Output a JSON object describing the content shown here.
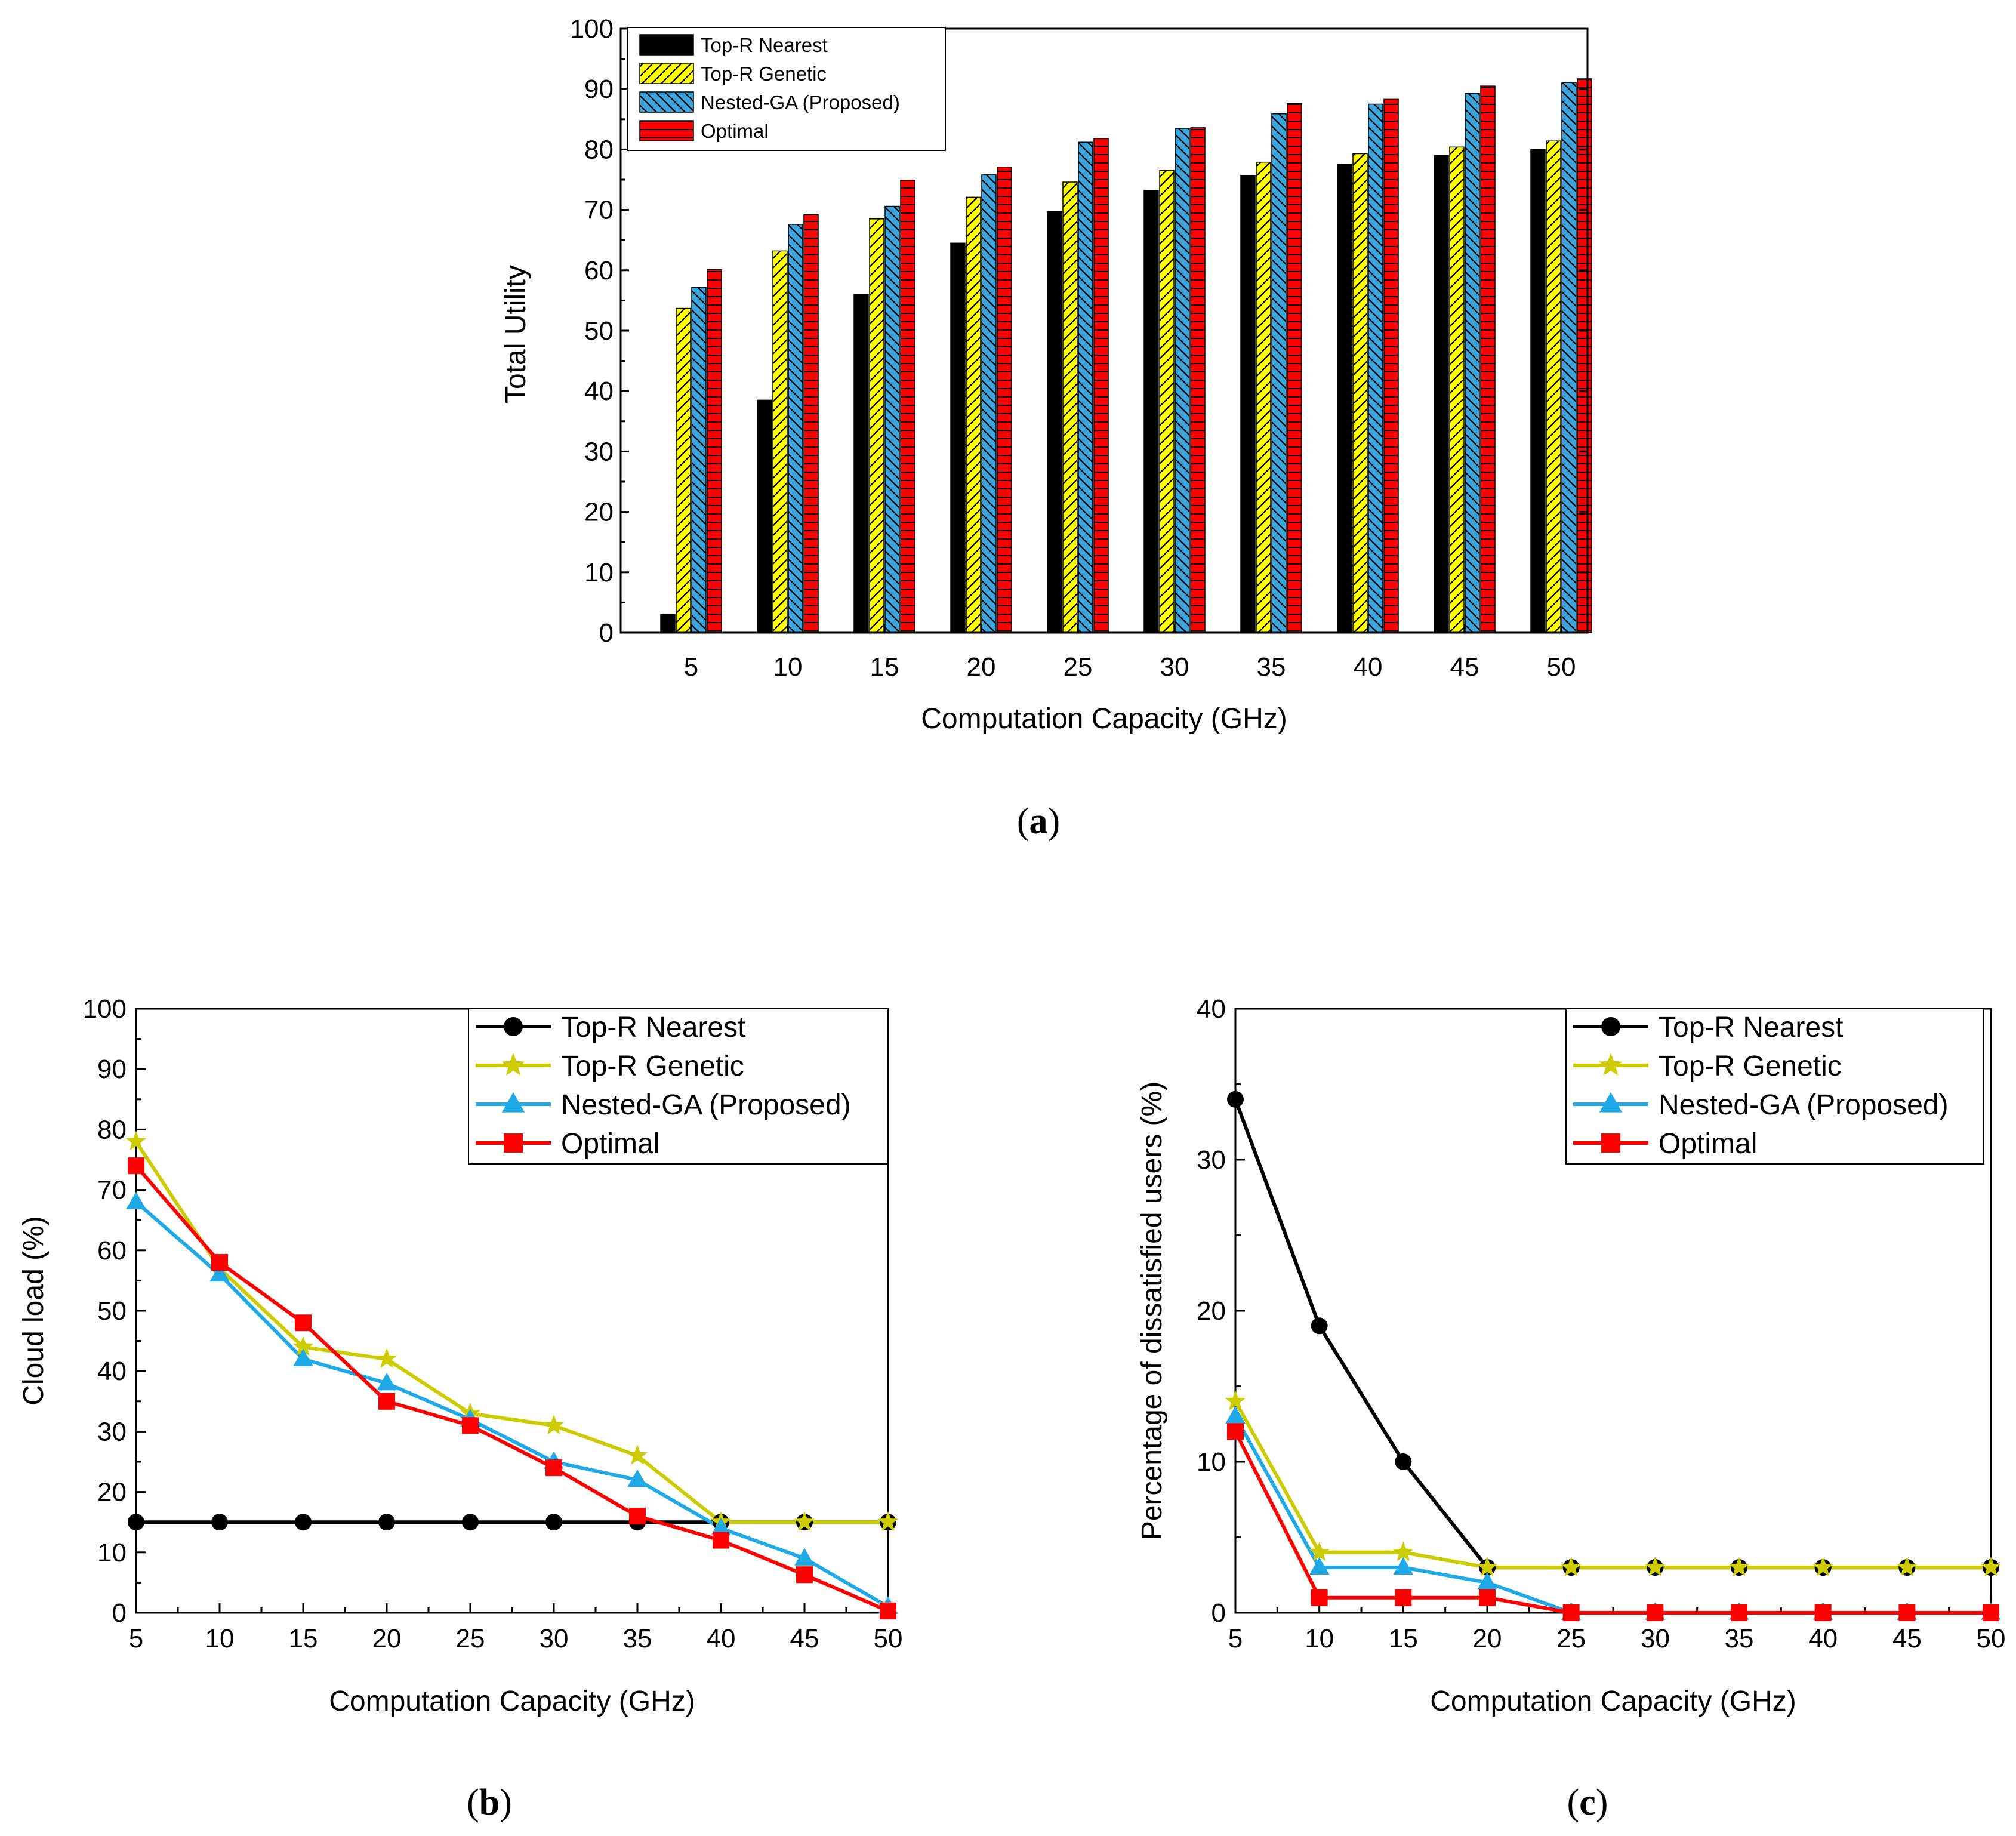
{
  "chart_data": [
    {
      "panel": "a",
      "type": "bar",
      "caption_open": "(",
      "caption_letter": "a",
      "caption_close": ")",
      "xlabel": "Computation Capacity (GHz)",
      "ylabel": "Total Utility",
      "ylim": [
        0,
        100
      ],
      "yticks": [
        "0",
        "10",
        "20",
        "30",
        "40",
        "50",
        "60",
        "70",
        "80",
        "90",
        "100"
      ],
      "categories": [
        "5",
        "10",
        "15",
        "20",
        "25",
        "30",
        "35",
        "40",
        "45",
        "50"
      ],
      "legend_position": "top-left",
      "series": [
        {
          "name": "Top-R Nearest",
          "color": "#000000",
          "pattern": "solid",
          "values": [
            3,
            38.5,
            56,
            64.5,
            69.7,
            73.2,
            75.7,
            77.5,
            79,
            80
          ]
        },
        {
          "name": "Top-R Genetic",
          "color": "#ffff00",
          "pattern": "diagonal",
          "values": [
            53.7,
            63.2,
            68.5,
            72.1,
            74.6,
            76.5,
            77.9,
            79.3,
            80.4,
            81.4
          ]
        },
        {
          "name": "Nested-GA (Proposed)",
          "color": "#3aa6dd",
          "pattern": "diagonal",
          "values": [
            57.2,
            67.6,
            70.6,
            75.8,
            81.2,
            83.5,
            85.9,
            87.5,
            89.3,
            91.1
          ]
        },
        {
          "name": "Optimal",
          "color": "#ff0000",
          "pattern": "horizontal",
          "values": [
            60.1,
            69.2,
            74.9,
            77.1,
            81.8,
            83.6,
            87.6,
            88.3,
            90.5,
            91.7
          ]
        }
      ]
    },
    {
      "panel": "b",
      "type": "line",
      "caption_open": "(",
      "caption_letter": "b",
      "caption_close": ")",
      "xlabel": "Computation Capacity (GHz)",
      "ylabel": "Cloud load (%)",
      "ylim": [
        0,
        100
      ],
      "yticks": [
        "0",
        "10",
        "20",
        "30",
        "40",
        "50",
        "60",
        "70",
        "80",
        "90",
        "100"
      ],
      "x": [
        "5",
        "10",
        "15",
        "20",
        "25",
        "30",
        "35",
        "40",
        "45",
        "50"
      ],
      "legend_position": "top-right",
      "series": [
        {
          "name": "Top-R Nearest",
          "color": "#000000",
          "marker": "circle",
          "values": [
            15,
            15,
            15,
            15,
            15,
            15,
            15,
            15,
            15,
            15
          ]
        },
        {
          "name": "Top-R Genetic",
          "color": "#cccc00",
          "marker": "star",
          "values": [
            78,
            57,
            44,
            42,
            33,
            31,
            26,
            15,
            15,
            15
          ]
        },
        {
          "name": "Nested-GA (Proposed)",
          "color": "#1fa9e6",
          "marker": "triangle",
          "values": [
            68,
            56,
            42,
            38,
            32,
            25,
            22,
            14,
            9,
            1
          ]
        },
        {
          "name": "Optimal",
          "color": "#ff0000",
          "marker": "square",
          "values": [
            74,
            58,
            48,
            35,
            31,
            24,
            16,
            12,
            6.3,
            0.3
          ]
        }
      ]
    },
    {
      "panel": "c",
      "type": "line",
      "caption_open": "(",
      "caption_letter": "c",
      "caption_close": ")",
      "xlabel": "Computation Capacity (GHz)",
      "ylabel": "Percentage of dissatisfied users (%)",
      "ylim": [
        0,
        40
      ],
      "yticks": [
        "0",
        "10",
        "20",
        "30",
        "40"
      ],
      "x": [
        "5",
        "10",
        "15",
        "20",
        "25",
        "30",
        "35",
        "40",
        "45",
        "50"
      ],
      "legend_position": "top-right",
      "series": [
        {
          "name": "Top-R Nearest",
          "color": "#000000",
          "marker": "circle",
          "values": [
            34,
            19,
            10,
            3,
            3,
            3,
            3,
            3,
            3,
            3
          ]
        },
        {
          "name": "Top-R Genetic",
          "color": "#cccc00",
          "marker": "star",
          "values": [
            14,
            4,
            4,
            3,
            3,
            3,
            3,
            3,
            3,
            3
          ]
        },
        {
          "name": "Nested-GA (Proposed)",
          "color": "#1fa9e6",
          "marker": "triangle",
          "values": [
            13,
            3,
            3,
            2,
            0,
            0,
            0,
            0,
            0,
            0
          ]
        },
        {
          "name": "Optimal",
          "color": "#ff0000",
          "marker": "square",
          "values": [
            12,
            1,
            1,
            1,
            0,
            0,
            0,
            0,
            0,
            0
          ]
        }
      ]
    }
  ]
}
